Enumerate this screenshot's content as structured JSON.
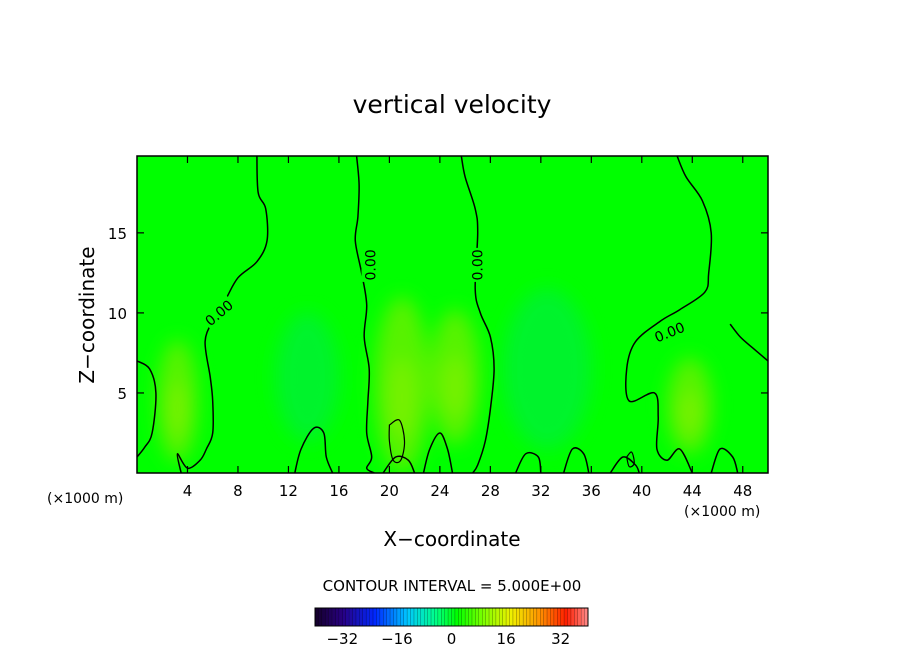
{
  "colors": {
    "field_base": "#00ff00",
    "warm_blob": "#66f000",
    "warm_blob_strong": "#8cf000",
    "cool_blob": "#00ee40",
    "contour_line": "#000000",
    "frame": "#000000"
  },
  "chart_data": {
    "type": "heatmap",
    "title": "vertical velocity",
    "xlabel": "X−coordinate",
    "ylabel": "Z−coordinate",
    "x_unit_label": "(×1000 m)",
    "x_unit_label_right": "(×1000 m)",
    "xlim": [
      0,
      50
    ],
    "ylim": [
      0,
      19.8
    ],
    "x_ticks": [
      4,
      8,
      12,
      16,
      20,
      24,
      28,
      32,
      36,
      40,
      44,
      48
    ],
    "x_tick_labels": [
      "4",
      "8",
      "12",
      "16",
      "20",
      "24",
      "28",
      "32",
      "36",
      "40",
      "44",
      "48"
    ],
    "y_ticks": [
      5,
      10,
      15
    ],
    "y_tick_labels": [
      "5",
      "10",
      "15"
    ],
    "contour_interval_text": "CONTOUR INTERVAL = 5.000E+00",
    "contour_labels": [
      {
        "text": "0.00",
        "x": 6.5,
        "y": 10.0,
        "angle": -40
      },
      {
        "text": "0.00",
        "x": 18.5,
        "y": 13.0,
        "angle": -90
      },
      {
        "text": "0.00",
        "x": 27.0,
        "y": 13.0,
        "angle": -90
      },
      {
        "text": "0.00",
        "x": 42.2,
        "y": 8.8,
        "angle": -22
      }
    ],
    "zero_contours": [
      [
        [
          9.5,
          19.8
        ],
        [
          9.6,
          17.5
        ],
        [
          10.2,
          16.5
        ],
        [
          10.3,
          14.5
        ],
        [
          9.5,
          13.2
        ],
        [
          8.0,
          12.2
        ],
        [
          7.0,
          10.8
        ],
        [
          6.0,
          9.5
        ],
        [
          5.4,
          8.2
        ],
        [
          5.8,
          6.0
        ],
        [
          6.0,
          4.5
        ],
        [
          6.0,
          2.5
        ],
        [
          5.5,
          1.5
        ],
        [
          5.0,
          0.8
        ],
        [
          4.0,
          0.3
        ],
        [
          3.2,
          1.2
        ],
        [
          3.5,
          0
        ]
      ],
      [
        [
          17.4,
          19.8
        ],
        [
          17.6,
          18.0
        ],
        [
          17.5,
          16.0
        ],
        [
          17.3,
          14.5
        ],
        [
          17.8,
          12.5
        ],
        [
          18.2,
          10.5
        ],
        [
          18.0,
          8.5
        ],
        [
          18.4,
          6.5
        ],
        [
          18.3,
          4.5
        ],
        [
          18.2,
          2.5
        ],
        [
          18.6,
          1.0
        ],
        [
          18.2,
          0.3
        ],
        [
          18.8,
          0
        ]
      ],
      [
        [
          25.7,
          19.8
        ],
        [
          26.0,
          18.5
        ],
        [
          26.8,
          16.5
        ],
        [
          27.0,
          15.0
        ],
        [
          26.8,
          11.5
        ],
        [
          27.2,
          10.0
        ],
        [
          28.0,
          8.5
        ],
        [
          28.3,
          6.5
        ],
        [
          28.0,
          4.0
        ],
        [
          27.6,
          2.0
        ],
        [
          27.0,
          0.5
        ],
        [
          26.6,
          0
        ]
      ],
      [
        [
          42.8,
          19.8
        ],
        [
          43.5,
          18.5
        ],
        [
          44.8,
          17.0
        ],
        [
          45.5,
          15.0
        ],
        [
          45.3,
          12.5
        ],
        [
          45.0,
          11.3
        ],
        [
          43.0,
          10.2
        ],
        [
          41.5,
          9.5
        ],
        [
          39.5,
          8.2
        ],
        [
          38.8,
          6.5
        ],
        [
          39.0,
          4.5
        ],
        [
          41.0,
          5.0
        ],
        [
          41.3,
          3.5
        ],
        [
          41.2,
          1.5
        ],
        [
          42.0,
          0.8
        ],
        [
          43.0,
          1.5
        ],
        [
          44.0,
          0
        ]
      ],
      [
        [
          47.0,
          9.3
        ],
        [
          47.8,
          8.5
        ],
        [
          48.8,
          7.8
        ],
        [
          50.0,
          7.0
        ]
      ],
      [
        [
          0,
          7.0
        ],
        [
          1.0,
          6.5
        ],
        [
          1.5,
          5.0
        ],
        [
          1.2,
          2.5
        ],
        [
          0.6,
          1.6
        ],
        [
          0,
          1.0
        ]
      ],
      [
        [
          12.5,
          0
        ],
        [
          13.0,
          1.5
        ],
        [
          14.0,
          2.8
        ],
        [
          14.8,
          2.5
        ],
        [
          15.0,
          1.0
        ],
        [
          15.5,
          0
        ]
      ],
      [
        [
          19.5,
          0
        ],
        [
          20.5,
          1.0
        ],
        [
          21.5,
          0.8
        ],
        [
          22.0,
          0
        ]
      ],
      [
        [
          22.7,
          0
        ],
        [
          23.2,
          1.5
        ],
        [
          24.0,
          2.5
        ],
        [
          24.6,
          1.5
        ],
        [
          25.0,
          0
        ]
      ],
      [
        [
          30.0,
          0
        ],
        [
          30.8,
          1.2
        ],
        [
          31.8,
          1.0
        ],
        [
          32.0,
          0
        ]
      ],
      [
        [
          33.8,
          0
        ],
        [
          34.5,
          1.5
        ],
        [
          35.4,
          1.2
        ],
        [
          35.8,
          0
        ]
      ],
      [
        [
          37.5,
          0
        ],
        [
          38.5,
          1.0
        ],
        [
          39.5,
          0.5
        ],
        [
          39.8,
          0
        ]
      ],
      [
        [
          45.5,
          0
        ],
        [
          46.2,
          1.5
        ],
        [
          47.2,
          1.0
        ],
        [
          47.6,
          0
        ]
      ]
    ],
    "closed_contours": [
      [
        [
          20.0,
          3.0
        ],
        [
          20.8,
          3.3
        ],
        [
          21.2,
          2.0
        ],
        [
          20.9,
          0.8
        ],
        [
          20.3,
          0.8
        ],
        [
          20.0,
          2.0
        ],
        [
          20.0,
          3.0
        ]
      ],
      [
        [
          38.8,
          1.0
        ],
        [
          39.2,
          1.3
        ],
        [
          39.4,
          0.6
        ],
        [
          39.0,
          0.4
        ],
        [
          38.8,
          1.0
        ]
      ]
    ],
    "anomalies": [
      {
        "x": 3.2,
        "y": 4.5,
        "rx": 1.6,
        "ry": 3.8,
        "sign": "positive"
      },
      {
        "x": 21.0,
        "y": 5.5,
        "rx": 2.2,
        "ry": 5.5,
        "sign": "positive"
      },
      {
        "x": 25.2,
        "y": 6.0,
        "rx": 2.0,
        "ry": 4.2,
        "sign": "positive"
      },
      {
        "x": 43.8,
        "y": 4.2,
        "rx": 1.8,
        "ry": 3.0,
        "sign": "positive"
      },
      {
        "x": 13.5,
        "y": 6.0,
        "rx": 2.5,
        "ry": 4.0,
        "sign": "negative"
      },
      {
        "x": 32.5,
        "y": 6.5,
        "rx": 3.5,
        "ry": 5.0,
        "sign": "negative"
      }
    ],
    "colorbar": {
      "vmin": -40,
      "vmax": 40,
      "ticks": [
        -32,
        -16,
        0,
        16,
        32
      ],
      "tick_labels": [
        "−32",
        "−16",
        "0",
        "16",
        "32"
      ],
      "n_bins": 80
    }
  }
}
